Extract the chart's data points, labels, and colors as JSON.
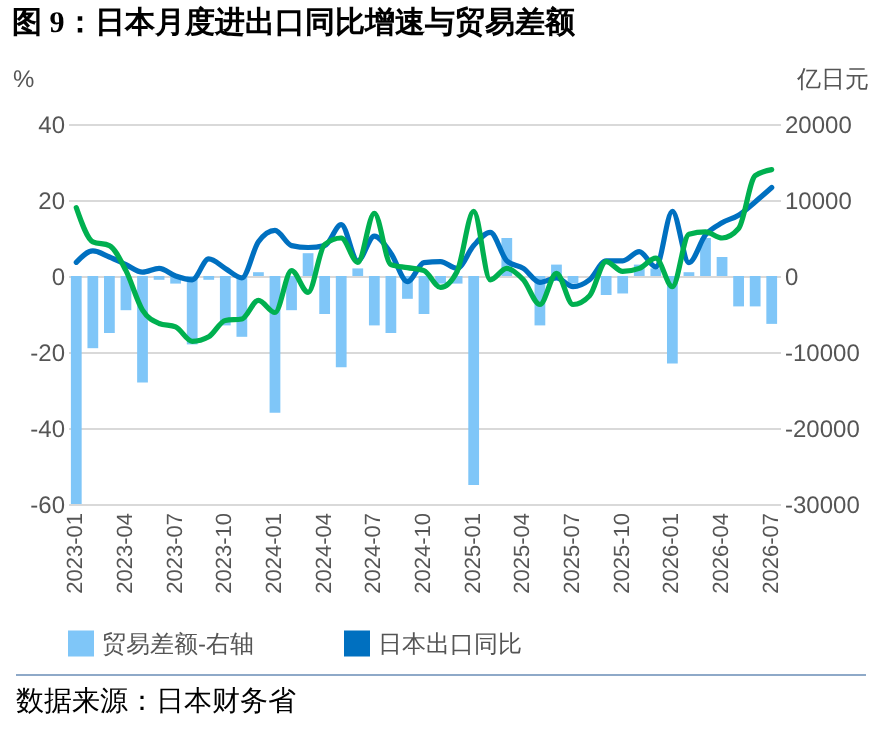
{
  "chart_data": {
    "type": "bar",
    "title": "图 9：日本月度进出口同比增速与贸易差额",
    "categories": [
      "2023-01",
      null,
      null,
      "2023-04",
      null,
      null,
      "2023-07",
      null,
      null,
      "2023-10",
      null,
      null,
      "2024-01",
      null,
      null,
      "2024-04",
      null,
      null,
      "2024-07",
      null,
      null,
      "2024-10",
      null,
      null,
      "2025-01",
      null,
      null,
      "2025-04",
      null,
      null,
      "2025-07",
      null,
      null,
      "2025-10",
      null,
      null,
      "2026-01",
      null,
      null,
      "2026-04",
      null,
      null,
      "2026-07"
    ],
    "series": [
      {
        "name": "贸易差额-右轴",
        "type": "bar",
        "axis": "y2",
        "color": "#7fc6f8",
        "values": [
          -30000,
          -9500,
          -7500,
          -4500,
          -14000,
          -500,
          -1000,
          -9000,
          -500,
          -6500,
          -8000,
          500,
          -18000,
          -4500,
          3000,
          -5000,
          -12000,
          1000,
          -6500,
          -7500,
          -3000,
          -5000,
          -1000,
          -1000,
          -27500,
          null,
          5000,
          null,
          -6500,
          1500,
          -1000,
          null,
          -2500,
          -2300,
          1500,
          1000,
          -11500,
          500,
          5000,
          2500,
          -4000,
          -4000,
          -6300
        ]
      },
      {
        "name": "日本出口同比",
        "type": "line",
        "color": "#0070c0",
        "values": [
          3.6,
          6.6,
          5,
          3,
          1,
          2,
          0,
          -1,
          4.5,
          2,
          -0.5,
          9,
          12,
          8,
          7.5,
          8,
          13.5,
          4,
          10.5,
          6,
          -1.5,
          3.5,
          3.8,
          2,
          8,
          11.5,
          4,
          2,
          -1.7,
          -0.5,
          -2.8,
          -1,
          4,
          4,
          6.4,
          2.4,
          17,
          3.5,
          10.8,
          14,
          16,
          19.5,
          23.3
        ]
      },
      {
        "type": "line",
        "color": "#00b050",
        "values": [
          18,
          9,
          8,
          1.4,
          -9,
          -12.5,
          -13.4,
          -17.2,
          -16,
          -11.7,
          -11.3,
          -6.4,
          -9.6,
          1.4,
          -4.3,
          8.3,
          10,
          3.6,
          16.5,
          3,
          2.2,
          1.4,
          -3,
          1.2,
          17,
          -1,
          2,
          -1,
          -7.5,
          0.7,
          -7.5,
          -5.2,
          3.8,
          1.2,
          2,
          4.7,
          -2.8,
          11,
          11.6,
          10,
          12.5,
          26.4,
          28
        ]
      }
    ],
    "ylabel": "%",
    "y2label": "亿日元",
    "ylim": [
      -60,
      40
    ],
    "yticks": [
      -60,
      -40,
      -20,
      0,
      20,
      40
    ],
    "y2lim": [
      -30000,
      20000
    ],
    "y2ticks": [
      -30000,
      -20000,
      -10000,
      0,
      10000,
      20000
    ],
    "grid": "y",
    "legend": "bottom",
    "annotations": [
      "数据来源：日本财务省"
    ]
  }
}
